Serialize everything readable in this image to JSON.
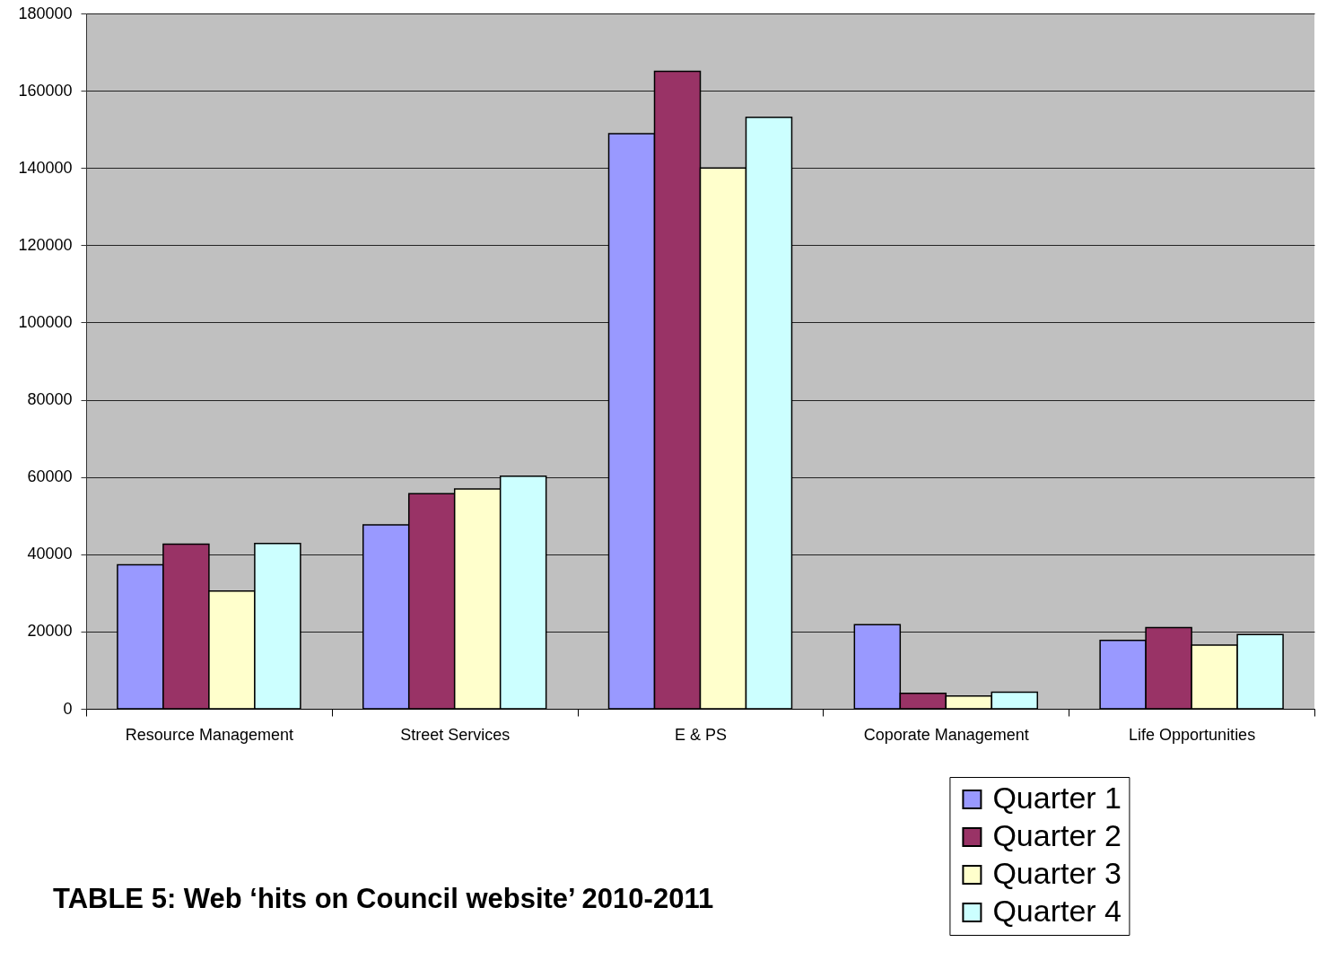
{
  "chart_data": {
    "type": "bar",
    "title": "TABLE 5:  Web ‘hits on Council website’ 2010-2011",
    "categories": [
      "Resource Management",
      "Street Services",
      "E & PS",
      "Coporate Management",
      "Life Opportunities"
    ],
    "series": [
      {
        "name": "Quarter 1",
        "color": "#9999ff",
        "values": [
          37300,
          47600,
          148900,
          21800,
          17700
        ]
      },
      {
        "name": "Quarter 2",
        "color": "#993366",
        "values": [
          42600,
          55700,
          165000,
          4000,
          21000
        ]
      },
      {
        "name": "Quarter 3",
        "color": "#ffffcc",
        "values": [
          30500,
          56900,
          140000,
          3300,
          16500
        ]
      },
      {
        "name": "Quarter 4",
        "color": "#ccffff",
        "values": [
          42800,
          60200,
          153100,
          4300,
          19200
        ]
      }
    ],
    "ylim": [
      0,
      180000
    ],
    "yticks": [
      0,
      20000,
      40000,
      60000,
      80000,
      100000,
      120000,
      140000,
      160000,
      180000
    ],
    "grid": "y",
    "legend": "bottom right"
  }
}
